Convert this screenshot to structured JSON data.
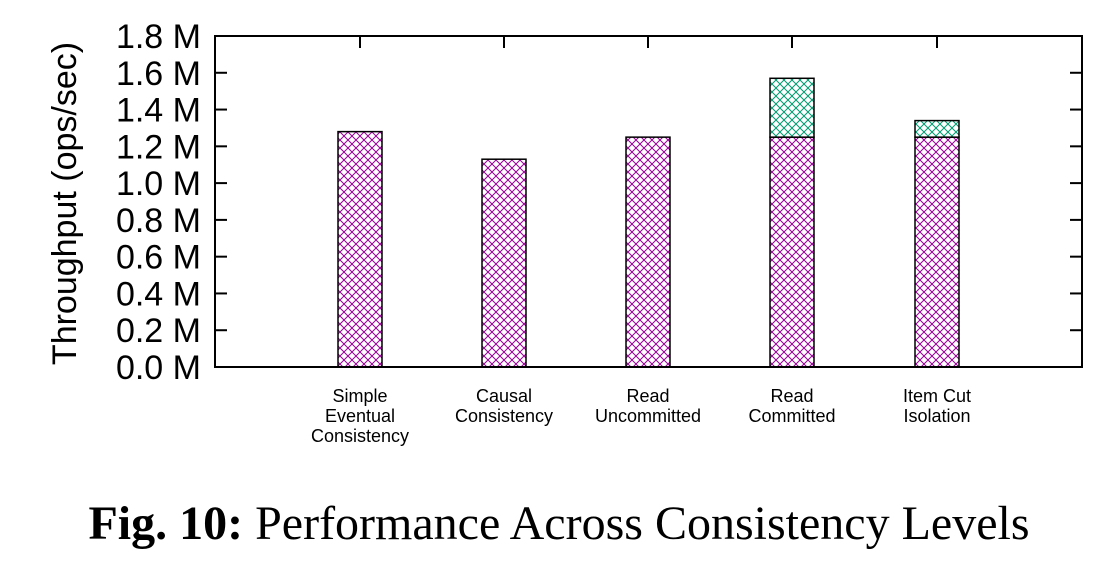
{
  "caption": {
    "figure_number": "Fig. 10:",
    "text": "Performance Across Consistency Levels"
  },
  "chart_data": {
    "type": "bar",
    "stacked": true,
    "title": "",
    "xlabel": "",
    "ylabel": "Throughput (ops/sec)",
    "ylim": [
      0,
      1.8
    ],
    "y_unit_suffix": " M",
    "y_ticks": [
      "0.0 M",
      "0.2 M",
      "0.4 M",
      "0.6 M",
      "0.8 M",
      "1.0 M",
      "1.2 M",
      "1.4 M",
      "1.6 M",
      "1.8 M"
    ],
    "categories": [
      [
        "Simple",
        "Eventual",
        "Consistency"
      ],
      [
        "Causal",
        "Consistency"
      ],
      [
        "Read",
        "Uncommitted"
      ],
      [
        "Read",
        "Committed"
      ],
      [
        "Item Cut",
        "Isolation"
      ]
    ],
    "series": [
      {
        "color": "#9a009a",
        "pattern": "crosshatch",
        "values": [
          1.28,
          1.13,
          1.25,
          1.25,
          1.25
        ]
      },
      {
        "color": "#009a70",
        "pattern": "crosshatch",
        "values": [
          0,
          0,
          0,
          0.32,
          0.09
        ]
      }
    ],
    "grid": false,
    "legend": "none"
  }
}
